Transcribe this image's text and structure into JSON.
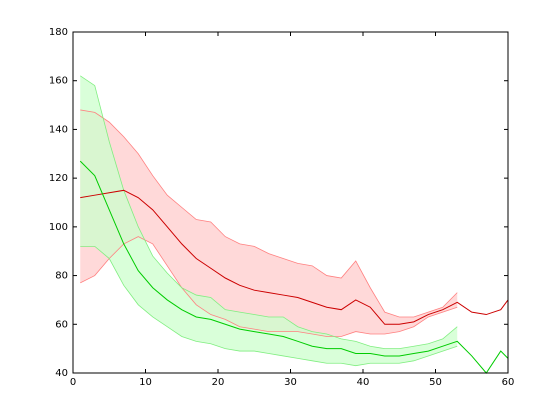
{
  "chart_data": {
    "type": "line",
    "x": [
      1,
      3,
      5,
      7,
      9,
      11,
      13,
      15,
      17,
      19,
      21,
      23,
      25,
      27,
      29,
      31,
      33,
      35,
      37,
      39,
      41,
      43,
      45,
      47,
      49,
      51,
      53,
      55,
      57,
      59,
      60
    ],
    "xlim": [
      0,
      60
    ],
    "xticks": [
      0,
      10,
      20,
      30,
      40,
      50,
      60
    ],
    "ylim": [
      40,
      180
    ],
    "yticks": [
      40,
      60,
      80,
      100,
      120,
      140,
      160,
      180
    ],
    "series": [
      {
        "color": "#cc0000",
        "band_color": "#ffcccc",
        "edge_color": "#ff8080",
        "values": [
          112,
          113,
          114,
          115,
          112,
          107,
          100,
          93,
          87,
          83,
          79,
          76,
          74,
          73,
          72,
          71,
          69,
          67,
          66,
          70,
          67,
          60,
          60,
          61,
          64,
          66,
          69,
          65,
          64,
          66,
          70
        ],
        "upper": [
          148,
          147,
          143,
          137,
          130,
          121,
          113,
          108,
          103,
          102,
          96,
          93,
          92,
          89,
          87,
          85,
          84,
          80,
          79,
          86,
          75,
          65,
          63,
          63,
          65,
          67,
          73,
          null,
          null,
          null,
          null
        ],
        "lower": [
          77,
          80,
          87,
          93,
          96,
          93,
          84,
          75,
          68,
          64,
          62,
          59,
          58,
          57,
          57,
          57,
          56,
          55,
          55,
          57,
          56,
          56,
          57,
          59,
          63,
          65,
          67,
          null,
          null,
          null,
          null
        ]
      },
      {
        "color": "#00cc00",
        "band_color": "#ccffcc",
        "edge_color": "#80ee80",
        "values": [
          127,
          121,
          107,
          93,
          82,
          75,
          70,
          66,
          63,
          62,
          60,
          58,
          57,
          56,
          55,
          53,
          51,
          50,
          50,
          48,
          48,
          47,
          47,
          48,
          49,
          51,
          53,
          47,
          40,
          49,
          46
        ],
        "upper": [
          162,
          158,
          135,
          115,
          100,
          88,
          81,
          75,
          72,
          71,
          66,
          65,
          64,
          63,
          63,
          59,
          57,
          56,
          54,
          53,
          51,
          50,
          50,
          51,
          52,
          54,
          59,
          null,
          null,
          null,
          null
        ],
        "lower": [
          92,
          92,
          87,
          76,
          68,
          63,
          59,
          55,
          53,
          52,
          50,
          49,
          49,
          48,
          47,
          46,
          45,
          44,
          44,
          43,
          44,
          44,
          44,
          45,
          47,
          49,
          51,
          null,
          null,
          null,
          null
        ]
      }
    ]
  }
}
